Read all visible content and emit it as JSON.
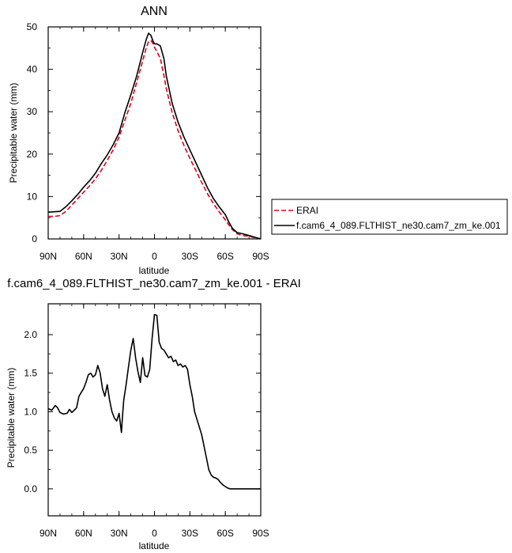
{
  "chart_data": [
    {
      "type": "line",
      "title": "ANN",
      "xlabel": "latitude",
      "ylabel": "Precipitable water (mm)",
      "xlim": [
        90,
        -90
      ],
      "ylim": [
        0,
        50
      ],
      "x_ticks": [
        {
          "value": 90,
          "label": "90N"
        },
        {
          "value": 60,
          "label": "60N"
        },
        {
          "value": 30,
          "label": "30N"
        },
        {
          "value": 0,
          "label": "0"
        },
        {
          "value": -30,
          "label": "30S"
        },
        {
          "value": -60,
          "label": "60S"
        },
        {
          "value": -90,
          "label": "90S"
        }
      ],
      "y_ticks": [
        0,
        10,
        20,
        30,
        40,
        50
      ],
      "legend_position": "right",
      "grid": false,
      "series": [
        {
          "name": "ERAI",
          "color": "#e0001a",
          "dash": "dashed",
          "x": [
            90,
            85,
            80,
            75,
            70,
            65,
            60,
            55,
            50,
            45,
            40,
            35,
            30,
            25,
            20,
            15,
            10,
            7,
            5,
            3,
            1,
            0,
            -2,
            -5,
            -8,
            -10,
            -15,
            -20,
            -25,
            -30,
            -35,
            -40,
            -45,
            -50,
            -55,
            -60,
            -63,
            -66,
            -70,
            -75,
            -80,
            -85,
            -90
          ],
          "y": [
            5.3,
            5.3,
            5.5,
            6.5,
            8.0,
            9.5,
            11.0,
            12.5,
            14.2,
            16.2,
            18.5,
            21.0,
            24.0,
            28.0,
            32.0,
            37.0,
            42.0,
            45.0,
            46.5,
            46.8,
            46.0,
            45.2,
            44.2,
            42.5,
            38.5,
            35.5,
            29.8,
            25.5,
            22.0,
            19.0,
            16.2,
            13.3,
            10.6,
            8.3,
            6.3,
            4.5,
            3.3,
            2.2,
            1.2,
            0.8,
            0.6,
            0.3,
            0.0
          ]
        },
        {
          "name": "f.cam6_4_089.FLTHIST_ne30.cam7_zm_ke.001",
          "color": "#000000",
          "dash": "solid",
          "x": [
            90,
            85,
            80,
            75,
            70,
            65,
            60,
            55,
            50,
            45,
            40,
            35,
            30,
            25,
            20,
            15,
            10,
            7,
            5,
            3,
            1,
            0,
            -2,
            -5,
            -8,
            -10,
            -15,
            -20,
            -25,
            -30,
            -35,
            -40,
            -45,
            -50,
            -55,
            -60,
            -63,
            -66,
            -70,
            -75,
            -80,
            -85,
            -90
          ],
          "y": [
            6.3,
            6.4,
            6.5,
            7.6,
            9.0,
            10.5,
            12.2,
            13.7,
            15.5,
            17.8,
            19.8,
            22.2,
            25.0,
            29.8,
            34.0,
            38.5,
            44.0,
            47.0,
            48.5,
            48.0,
            46.5,
            46.0,
            46.0,
            45.5,
            42.5,
            38.5,
            32.0,
            27.5,
            24.0,
            21.0,
            18.0,
            15.0,
            12.0,
            9.5,
            7.5,
            5.7,
            4.0,
            2.5,
            1.5,
            1.2,
            0.8,
            0.4,
            0.0
          ]
        }
      ]
    },
    {
      "type": "line",
      "title": "f.cam6_4_089.FLTHIST_ne30.cam7_zm_ke.001 - ERAI",
      "xlabel": "latitude",
      "ylabel": "Precipitable water (mm)",
      "xlim": [
        90,
        -90
      ],
      "ylim": [
        -0.35,
        2.4
      ],
      "x_ticks": [
        {
          "value": 90,
          "label": "90N"
        },
        {
          "value": 60,
          "label": "60N"
        },
        {
          "value": 30,
          "label": "30N"
        },
        {
          "value": 0,
          "label": "0"
        },
        {
          "value": -30,
          "label": "30S"
        },
        {
          "value": -60,
          "label": "60S"
        },
        {
          "value": -90,
          "label": "90S"
        }
      ],
      "y_ticks": [
        {
          "value": 0.0,
          "label": "0.0"
        },
        {
          "value": 0.5,
          "label": "0.5"
        },
        {
          "value": 1.0,
          "label": "1.0"
        },
        {
          "value": 1.5,
          "label": "1.5"
        },
        {
          "value": 2.0,
          "label": "2.0"
        }
      ],
      "grid": false,
      "series": [
        {
          "color": "#000000",
          "dash": "solid",
          "x": [
            90,
            87,
            84,
            82,
            80,
            77,
            74,
            72,
            70,
            68,
            66,
            64,
            62,
            60,
            58,
            56,
            54,
            52,
            50,
            48,
            46,
            44,
            42,
            40,
            38,
            36,
            34,
            32,
            30,
            28,
            27,
            26,
            24,
            22,
            20,
            18,
            16,
            14,
            12,
            10,
            8,
            6,
            4,
            2,
            0,
            -2,
            -4,
            -6,
            -8,
            -10,
            -12,
            -14,
            -16,
            -18,
            -20,
            -22,
            -24,
            -26,
            -28,
            -30,
            -32,
            -34,
            -36,
            -38,
            -40,
            -42,
            -44,
            -46,
            -48,
            -50,
            -52,
            -54,
            -56,
            -58,
            -60,
            -62,
            -64,
            -66,
            -68,
            -70,
            -72,
            -74,
            -76,
            -78,
            -80,
            -82,
            -84,
            -86,
            -88,
            -90
          ],
          "y": [
            1.04,
            1.02,
            1.08,
            1.05,
            0.99,
            0.97,
            0.98,
            1.03,
            0.99,
            1.02,
            1.05,
            1.2,
            1.25,
            1.3,
            1.38,
            1.48,
            1.5,
            1.45,
            1.48,
            1.6,
            1.5,
            1.3,
            1.2,
            1.35,
            1.15,
            1.0,
            0.92,
            0.88,
            0.98,
            0.73,
            0.95,
            1.15,
            1.35,
            1.58,
            1.8,
            1.95,
            1.7,
            1.52,
            1.38,
            1.7,
            1.47,
            1.45,
            1.55,
            1.95,
            2.26,
            2.25,
            1.9,
            1.82,
            1.8,
            1.75,
            1.7,
            1.72,
            1.65,
            1.67,
            1.6,
            1.62,
            1.58,
            1.6,
            1.55,
            1.35,
            1.2,
            1.0,
            0.9,
            0.8,
            0.7,
            0.55,
            0.4,
            0.25,
            0.18,
            0.15,
            0.14,
            0.12,
            0.08,
            0.05,
            0.03,
            0.01,
            0.0,
            0.0,
            0.0,
            0.0,
            0.0,
            0.0,
            0.0,
            0.0,
            0.0,
            0.0,
            0.0,
            0.0,
            0.0,
            0.0
          ]
        }
      ]
    }
  ]
}
